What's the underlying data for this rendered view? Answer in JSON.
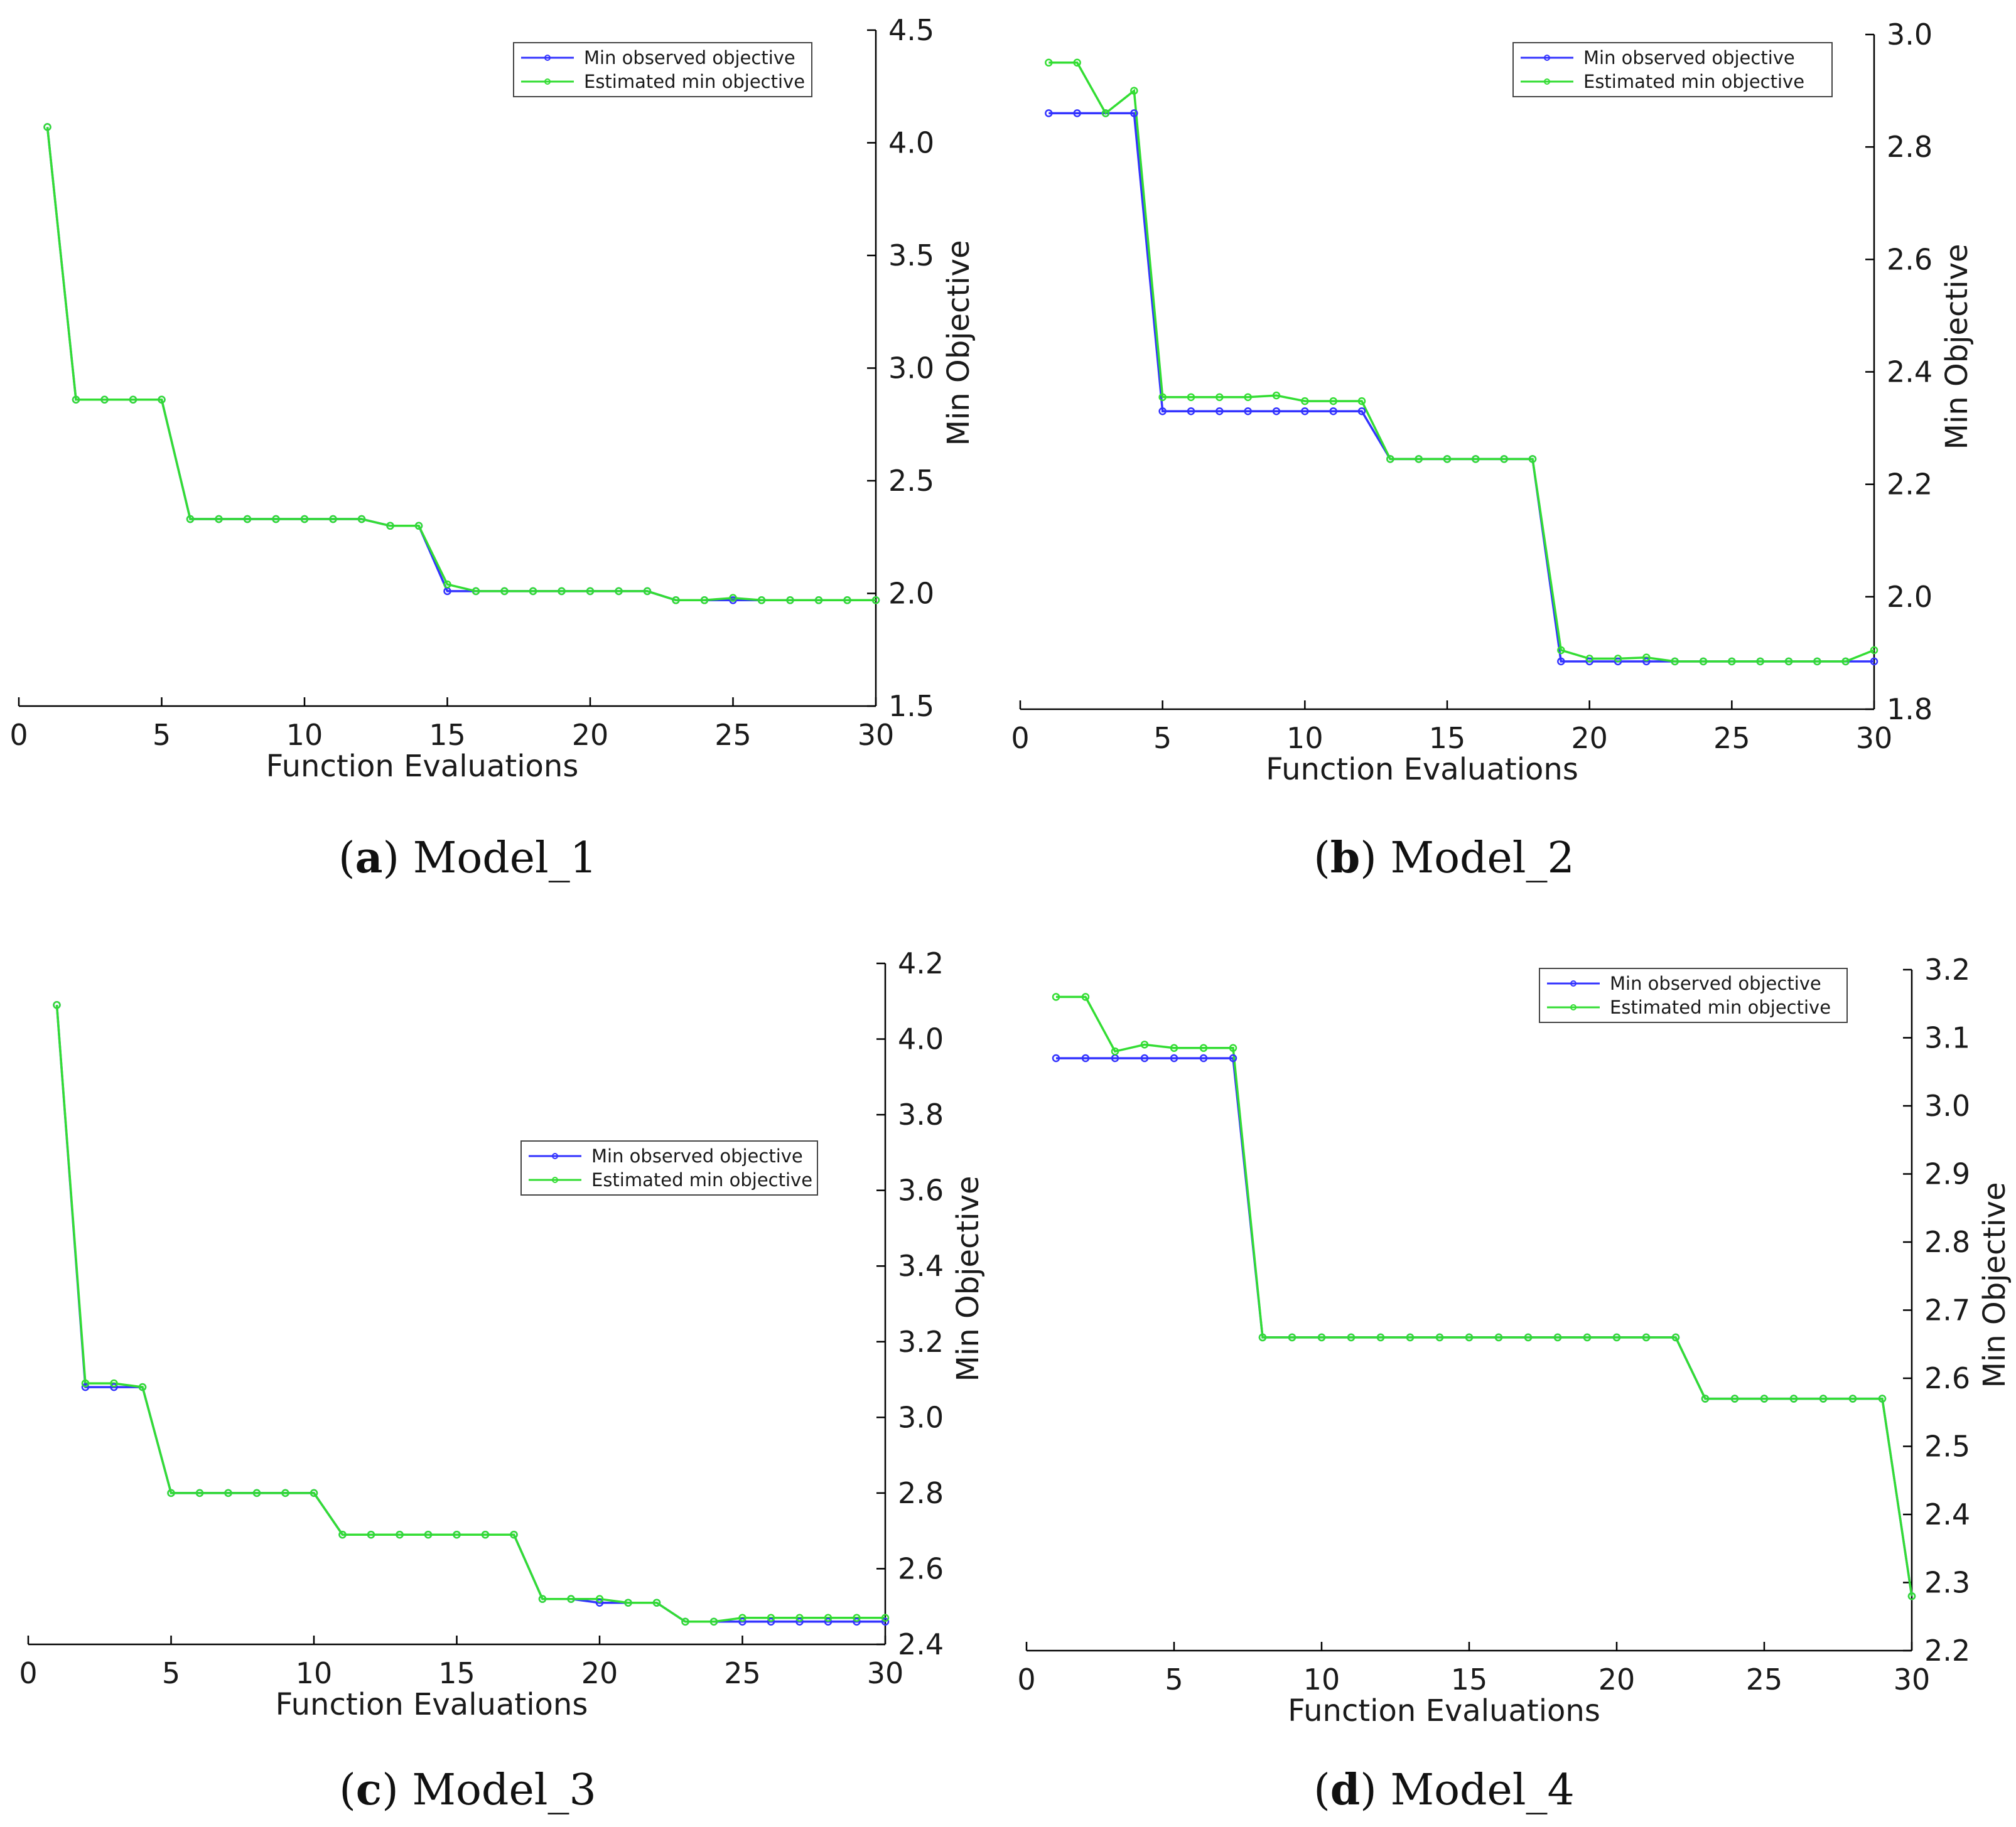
{
  "colors": {
    "min_observed": "#3333ff",
    "estimated_min": "#33dd33"
  },
  "chart_data": [
    {
      "type": "line",
      "caption_letter": "a",
      "caption_name": "Model_1",
      "xlabel": "Function Evaluations",
      "ylabel": "Min Objective",
      "xlim": [
        0,
        30
      ],
      "ylim": [
        1.5,
        4.5
      ],
      "xticks": [
        0,
        5,
        10,
        15,
        20,
        25,
        30
      ],
      "yticks": [
        1.5,
        2.0,
        2.5,
        3.0,
        3.5,
        4.0,
        4.5
      ],
      "ytick_decimals": 1,
      "legend_position": "top-right",
      "x": [
        1,
        2,
        3,
        4,
        5,
        6,
        7,
        8,
        9,
        10,
        11,
        12,
        13,
        14,
        15,
        16,
        17,
        18,
        19,
        20,
        21,
        22,
        23,
        24,
        25,
        26,
        27,
        28,
        29,
        30
      ],
      "series": [
        {
          "name": "Min observed objective",
          "values": [
            4.07,
            2.86,
            2.86,
            2.86,
            2.86,
            2.33,
            2.33,
            2.33,
            2.33,
            2.33,
            2.33,
            2.33,
            2.3,
            2.3,
            2.01,
            2.01,
            2.01,
            2.01,
            2.01,
            2.01,
            2.01,
            2.01,
            1.97,
            1.97,
            1.97,
            1.97,
            1.97,
            1.97,
            1.97,
            1.97
          ]
        },
        {
          "name": "Estimated min objective",
          "values": [
            4.07,
            2.86,
            2.86,
            2.86,
            2.86,
            2.33,
            2.33,
            2.33,
            2.33,
            2.33,
            2.33,
            2.33,
            2.3,
            2.3,
            2.04,
            2.01,
            2.01,
            2.01,
            2.01,
            2.01,
            2.01,
            2.01,
            1.97,
            1.97,
            1.98,
            1.97,
            1.97,
            1.97,
            1.97,
            1.97
          ]
        }
      ]
    },
    {
      "type": "line",
      "caption_letter": "b",
      "caption_name": "Model_2",
      "xlabel": "Function Evaluations",
      "ylabel": "Min Objective",
      "xlim": [
        0,
        30
      ],
      "ylim": [
        1.8,
        3.0
      ],
      "xticks": [
        0,
        5,
        10,
        15,
        20,
        25,
        30
      ],
      "yticks": [
        1.8,
        2.0,
        2.2,
        2.4,
        2.6,
        2.8,
        3.0
      ],
      "ytick_decimals": 1,
      "legend_position": "top-right",
      "x": [
        1,
        2,
        3,
        4,
        5,
        6,
        7,
        8,
        9,
        10,
        11,
        12,
        13,
        14,
        15,
        16,
        17,
        18,
        19,
        20,
        21,
        22,
        23,
        24,
        25,
        26,
        27,
        28,
        29,
        30
      ],
      "series": [
        {
          "name": "Min observed objective",
          "values": [
            2.86,
            2.86,
            2.86,
            2.86,
            2.33,
            2.33,
            2.33,
            2.33,
            2.33,
            2.33,
            2.33,
            2.33,
            2.245,
            2.245,
            2.245,
            2.245,
            2.245,
            2.245,
            1.885,
            1.885,
            1.885,
            1.885,
            1.885,
            1.885,
            1.885,
            1.885,
            1.885,
            1.885,
            1.885,
            1.885
          ]
        },
        {
          "name": "Estimated min objective",
          "values": [
            2.95,
            2.95,
            2.86,
            2.9,
            2.355,
            2.355,
            2.355,
            2.355,
            2.358,
            2.348,
            2.348,
            2.348,
            2.245,
            2.245,
            2.245,
            2.245,
            2.245,
            2.245,
            1.905,
            1.89,
            1.89,
            1.892,
            1.885,
            1.885,
            1.885,
            1.885,
            1.885,
            1.885,
            1.885,
            1.905
          ]
        }
      ]
    },
    {
      "type": "line",
      "caption_letter": "c",
      "caption_name": "Model_3",
      "xlabel": "Function Evaluations",
      "ylabel": "Min Objective",
      "xlim": [
        0,
        30
      ],
      "ylim": [
        2.4,
        4.2
      ],
      "xticks": [
        0,
        5,
        10,
        15,
        20,
        25,
        30
      ],
      "yticks": [
        2.4,
        2.6,
        2.8,
        3.0,
        3.2,
        3.4,
        3.6,
        3.8,
        4.0,
        4.2
      ],
      "ytick_decimals": 1,
      "legend_position": "middle-right",
      "x": [
        1,
        2,
        3,
        4,
        5,
        6,
        7,
        8,
        9,
        10,
        11,
        12,
        13,
        14,
        15,
        16,
        17,
        18,
        19,
        20,
        21,
        22,
        23,
        24,
        25,
        26,
        27,
        28,
        29,
        30
      ],
      "series": [
        {
          "name": "Min observed objective",
          "values": [
            4.09,
            3.08,
            3.08,
            3.08,
            2.8,
            2.8,
            2.8,
            2.8,
            2.8,
            2.8,
            2.69,
            2.69,
            2.69,
            2.69,
            2.69,
            2.69,
            2.69,
            2.52,
            2.52,
            2.51,
            2.51,
            2.51,
            2.46,
            2.46,
            2.46,
            2.46,
            2.46,
            2.46,
            2.46,
            2.46
          ]
        },
        {
          "name": "Estimated min objective",
          "values": [
            4.09,
            3.09,
            3.09,
            3.08,
            2.8,
            2.8,
            2.8,
            2.8,
            2.8,
            2.8,
            2.69,
            2.69,
            2.69,
            2.69,
            2.69,
            2.69,
            2.69,
            2.52,
            2.52,
            2.52,
            2.51,
            2.51,
            2.46,
            2.46,
            2.47,
            2.47,
            2.47,
            2.47,
            2.47,
            2.47
          ]
        }
      ]
    },
    {
      "type": "line",
      "caption_letter": "d",
      "caption_name": "Model_4",
      "xlabel": "Function Evaluations",
      "ylabel": "Min Objective",
      "xlim": [
        0,
        30
      ],
      "ylim": [
        2.2,
        3.2
      ],
      "xticks": [
        0,
        5,
        10,
        15,
        20,
        25,
        30
      ],
      "yticks": [
        2.2,
        2.3,
        2.4,
        2.5,
        2.6,
        2.7,
        2.8,
        2.9,
        3.0,
        3.1,
        3.2
      ],
      "ytick_decimals": 1,
      "legend_position": "top-right",
      "x": [
        1,
        2,
        3,
        4,
        5,
        6,
        7,
        8,
        9,
        10,
        11,
        12,
        13,
        14,
        15,
        16,
        17,
        18,
        19,
        20,
        21,
        22,
        23,
        24,
        25,
        26,
        27,
        28,
        29,
        30
      ],
      "series": [
        {
          "name": "Min observed objective",
          "values": [
            3.07,
            3.07,
            3.07,
            3.07,
            3.07,
            3.07,
            3.07,
            2.66,
            2.66,
            2.66,
            2.66,
            2.66,
            2.66,
            2.66,
            2.66,
            2.66,
            2.66,
            2.66,
            2.66,
            2.66,
            2.66,
            2.66,
            2.57,
            2.57,
            2.57,
            2.57,
            2.57,
            2.57,
            2.57,
            2.28
          ]
        },
        {
          "name": "Estimated min objective",
          "values": [
            3.16,
            3.16,
            3.08,
            3.09,
            3.085,
            3.085,
            3.085,
            2.66,
            2.66,
            2.66,
            2.66,
            2.66,
            2.66,
            2.66,
            2.66,
            2.66,
            2.66,
            2.66,
            2.66,
            2.66,
            2.66,
            2.66,
            2.57,
            2.57,
            2.57,
            2.57,
            2.57,
            2.57,
            2.57,
            2.28
          ]
        }
      ]
    }
  ]
}
